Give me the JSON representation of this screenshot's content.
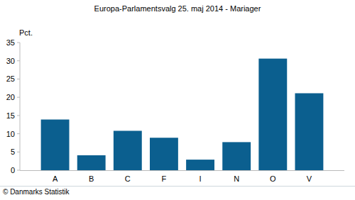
{
  "chart_data": {
    "type": "bar",
    "title": "Europa-Parlamentsvalg 25. maj 2014 - Mariager",
    "y_label": "Pct.",
    "source": "© Danmarks Statistik",
    "categories": [
      "A",
      "B",
      "C",
      "F",
      "I",
      "N",
      "O",
      "V"
    ],
    "values": [
      13.9,
      4.1,
      10.8,
      8.9,
      2.9,
      7.7,
      30.6,
      21.1
    ],
    "color": "#0b5f8f",
    "ylim": [
      0,
      35
    ],
    "yticks": [
      0,
      5,
      10,
      15,
      20,
      25,
      30,
      35
    ],
    "grid": false
  }
}
